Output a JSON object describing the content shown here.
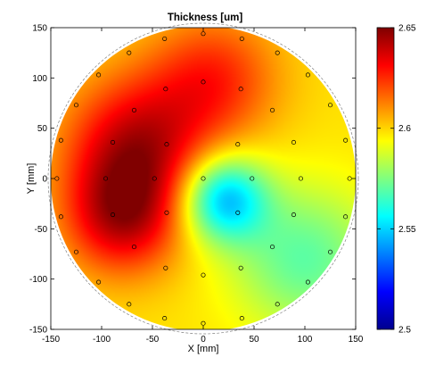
{
  "chart_data": {
    "type": "heatmap",
    "title": "Thickness [um]",
    "xlabel": "X [mm]",
    "ylabel": "Y [mm]",
    "xlim": [
      -150,
      150
    ],
    "ylim": [
      -150,
      150
    ],
    "x_ticks": [
      -150,
      -100,
      -50,
      0,
      50,
      100,
      150
    ],
    "y_ticks": [
      150,
      100,
      50,
      0,
      -50,
      -100,
      -150
    ],
    "colorbar": {
      "range": [
        2.5,
        2.65
      ],
      "ticks": [
        2.5,
        2.55,
        2.6,
        2.65
      ],
      "colormap": "jet"
    },
    "wafer_radius": 150,
    "field_peaks": [
      {
        "x": -65,
        "y": 30,
        "value": 2.64,
        "spread": 50
      },
      {
        "x": -80,
        "y": -40,
        "value": 2.635,
        "spread": 40
      },
      {
        "x": 10,
        "y": 100,
        "value": 2.625,
        "spread": 45
      },
      {
        "x": 20,
        "y": -20,
        "value": 2.545,
        "spread": 30
      },
      {
        "x": 100,
        "y": -80,
        "value": 2.57,
        "spread": 50
      }
    ],
    "measurement_points": [
      {
        "x": 0,
        "y": 144
      },
      {
        "x": -38,
        "y": 139
      },
      {
        "x": 38,
        "y": 139
      },
      {
        "x": -73,
        "y": 125
      },
      {
        "x": 73,
        "y": 125
      },
      {
        "x": -103,
        "y": 103
      },
      {
        "x": 103,
        "y": 103
      },
      {
        "x": 0,
        "y": 96
      },
      {
        "x": -37,
        "y": 89
      },
      {
        "x": 37,
        "y": 89
      },
      {
        "x": -125,
        "y": 73
      },
      {
        "x": 125,
        "y": 73
      },
      {
        "x": -68,
        "y": 68
      },
      {
        "x": 68,
        "y": 68
      },
      {
        "x": -89,
        "y": 36
      },
      {
        "x": 89,
        "y": 36
      },
      {
        "x": -36,
        "y": 34
      },
      {
        "x": 34,
        "y": 34
      },
      {
        "x": -140,
        "y": 38
      },
      {
        "x": 140,
        "y": 38
      },
      {
        "x": -144,
        "y": 0
      },
      {
        "x": 144,
        "y": 0
      },
      {
        "x": -96,
        "y": 0
      },
      {
        "x": 96,
        "y": 0
      },
      {
        "x": -48,
        "y": 0
      },
      {
        "x": 0,
        "y": 0
      },
      {
        "x": 48,
        "y": 0
      },
      {
        "x": -36,
        "y": -34
      },
      {
        "x": 34,
        "y": -34
      },
      {
        "x": -89,
        "y": -36
      },
      {
        "x": 89,
        "y": -36
      },
      {
        "x": -140,
        "y": -38
      },
      {
        "x": 140,
        "y": -38
      },
      {
        "x": -68,
        "y": -68
      },
      {
        "x": 68,
        "y": -68
      },
      {
        "x": -125,
        "y": -73
      },
      {
        "x": 125,
        "y": -73
      },
      {
        "x": -37,
        "y": -89
      },
      {
        "x": 37,
        "y": -89
      },
      {
        "x": 0,
        "y": -96
      },
      {
        "x": -103,
        "y": -103
      },
      {
        "x": 103,
        "y": -103
      },
      {
        "x": -73,
        "y": -125
      },
      {
        "x": 73,
        "y": -125
      },
      {
        "x": -38,
        "y": -139
      },
      {
        "x": 38,
        "y": -139
      },
      {
        "x": 0,
        "y": -144
      }
    ]
  }
}
